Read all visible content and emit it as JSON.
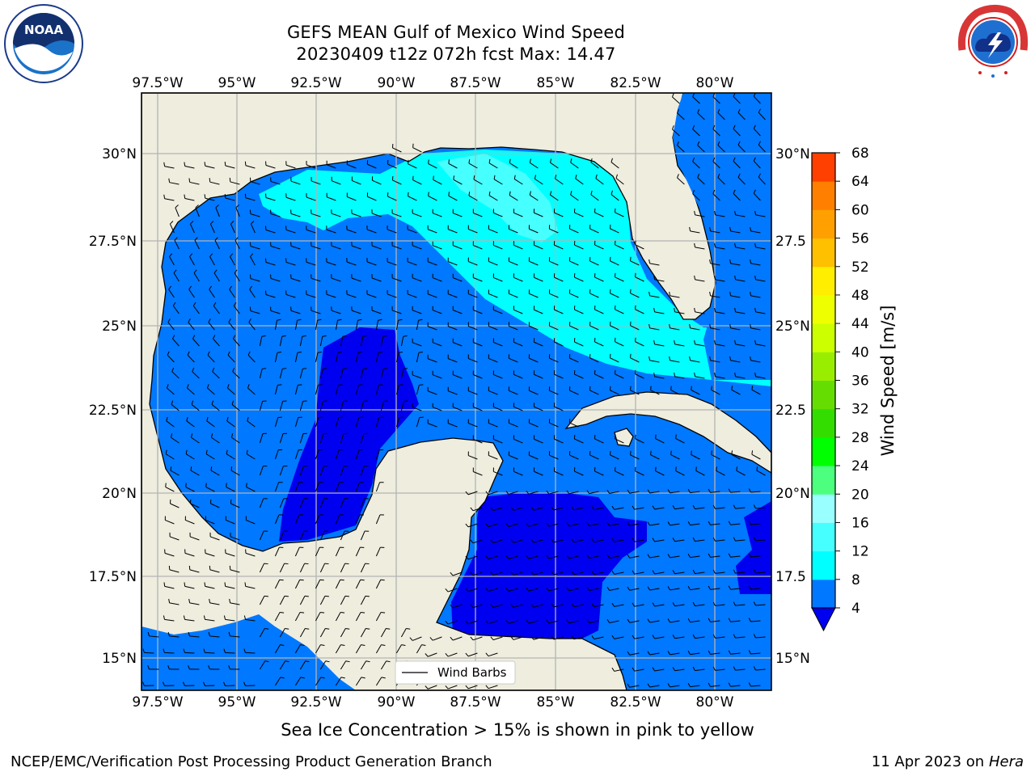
{
  "header": {
    "title_line1": "GEFS MEAN Gulf of Mexico Wind Speed",
    "title_line2": "20230409 t12z 072h fcst   Max: 14.47"
  },
  "logos": {
    "left": {
      "name": "noaa-logo",
      "text": "NOAA"
    },
    "right": {
      "name": "national-weather-service-logo",
      "text": "NATIONAL WEATHER SERVICE"
    }
  },
  "map": {
    "lon_ticks": [
      "97.5°W",
      "95°W",
      "92.5°W",
      "90°W",
      "87.5°W",
      "85°W",
      "82.5°W",
      "80°W"
    ],
    "lat_ticks_left": [
      "30°N",
      "27.5°N",
      "25°N",
      "22.5°N",
      "20°N",
      "17.5°N",
      "15°N"
    ],
    "lat_ticks_right": [
      "30°N",
      "27.5",
      "25°N",
      "22.5",
      "20°N",
      "17.5",
      "15°N"
    ],
    "legend_label": "Wind Barbs",
    "colors": {
      "land": "#eeedde",
      "coast": "#000000",
      "grid": "#b4b4b4",
      "band_4_8": "#0078ff",
      "band_below_4": "#0000f0",
      "band_8_12": "#00ffff",
      "band_12_16": "#46ffff"
    }
  },
  "colorbar": {
    "label": "Wind Speed [m/s]",
    "ticks": [
      "4",
      "8",
      "12",
      "16",
      "20",
      "24",
      "28",
      "32",
      "36",
      "40",
      "44",
      "48",
      "52",
      "56",
      "60",
      "64",
      "68"
    ],
    "colors": [
      "#0078ff",
      "#00ffff",
      "#46ffff",
      "#99ffff",
      "#4cff7f",
      "#00ff00",
      "#33dd00",
      "#66dd00",
      "#99ee00",
      "#ccff00",
      "#eeff00",
      "#ffee00",
      "#ffc000",
      "#ffa000",
      "#ff8000",
      "#ff4000",
      "#ff0000"
    ],
    "underflow_color": "#0000f0"
  },
  "footnote": "Sea Ice Concentration > 15% is shown in pink to yellow",
  "footer": {
    "left": "NCEP/EMC/Verification Post Processing Product Generation Branch",
    "date": "11 Apr 2023 on ",
    "machine": "Hera"
  }
}
